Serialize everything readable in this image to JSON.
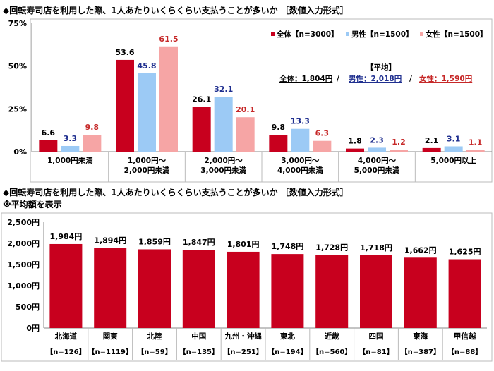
{
  "colors": {
    "all": "#c8001e",
    "male": "#9ccaf5",
    "female": "#f6a5a5",
    "male_label": "#1f2f8f",
    "female_label": "#c62828"
  },
  "chart_data": [
    {
      "type": "bar",
      "title": "◆回転寿司店を利用した際、1人あたりいくらくらい支払うことが多いか ［数値入力形式］",
      "categories": [
        [
          "1,000円未満"
        ],
        [
          "1,000円～",
          "2,000円未満"
        ],
        [
          "2,000円～",
          "3,000円未満"
        ],
        [
          "3,000円～",
          "4,000円未満"
        ],
        [
          "4,000円～",
          "5,000円未満"
        ],
        [
          "5,000円以上"
        ]
      ],
      "series": [
        {
          "name": "全体【n=3000】",
          "values": [
            6.6,
            53.6,
            26.1,
            9.8,
            1.8,
            2.1
          ]
        },
        {
          "name": "男性【n=1500】",
          "values": [
            3.3,
            45.8,
            32.1,
            13.3,
            2.3,
            3.1
          ]
        },
        {
          "name": "女性【n=1500】",
          "values": [
            9.8,
            61.5,
            20.1,
            6.3,
            1.2,
            1.1
          ]
        }
      ],
      "yticks": [
        "0%",
        "25%",
        "50%",
        "75%"
      ],
      "ylim": [
        0,
        75
      ],
      "grid": false,
      "legend": "top-right",
      "annotation": {
        "heading": "【平均】",
        "all": "全体：1,804円",
        "male": "男性：2,018円",
        "female": "女性：1,590円",
        "sep": "/"
      }
    },
    {
      "type": "bar",
      "title": "◆回転寿司店を利用した際、1人あたりいくらくらい支払うことが多いか ［数値入力形式］",
      "subtitle": "※平均額を表示",
      "categories": [
        "北海道",
        "関東",
        "北陸",
        "中国",
        "九州・沖縄",
        "東北",
        "近畿",
        "四国",
        "東海",
        "甲信越"
      ],
      "n_labels": [
        "【n=126】",
        "【n=1119】",
        "【n=59】",
        "【n=135】",
        "【n=251】",
        "【n=194】",
        "【n=560】",
        "【n=81】",
        "【n=387】",
        "【n=88】"
      ],
      "values": [
        1984,
        1894,
        1859,
        1847,
        1801,
        1748,
        1728,
        1718,
        1662,
        1625
      ],
      "value_labels": [
        "1,984円",
        "1,894円",
        "1,859円",
        "1,847円",
        "1,801円",
        "1,748円",
        "1,728円",
        "1,718円",
        "1,662円",
        "1,625円"
      ],
      "yticks": [
        "0円",
        "500円",
        "1,000円",
        "1,500円",
        "2,000円",
        "2,500円"
      ],
      "ylim": [
        0,
        2500
      ],
      "grid": false
    }
  ]
}
